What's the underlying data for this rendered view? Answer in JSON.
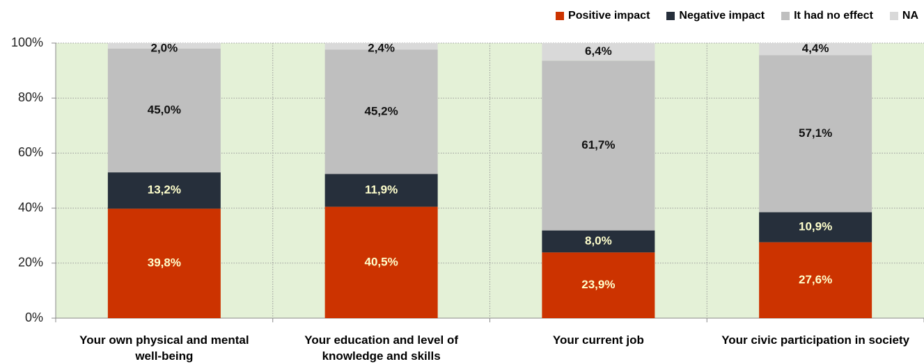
{
  "chart_data": {
    "type": "stacked_bar",
    "categories": [
      "Your own physical and mental well-being",
      "Your education and level of knowledge and skills",
      "Your current job",
      "Your civic participation in society"
    ],
    "series": [
      {
        "name": "Positive impact",
        "color": "#cc3300",
        "label_color": "#ffffcc",
        "values": [
          39.8,
          40.5,
          23.9,
          27.6
        ],
        "value_labels": [
          "39,8%",
          "40,5%",
          "23,9%",
          "27,6%"
        ]
      },
      {
        "name": "Negative impact",
        "color": "#262f3b",
        "label_color": "#ffffcc",
        "values": [
          13.2,
          11.9,
          8.0,
          10.9
        ],
        "value_labels": [
          "13,2%",
          "11,9%",
          "8,0%",
          "10,9%"
        ]
      },
      {
        "name": "It had no effect",
        "color": "#bfbfbf",
        "label_color": "#111111",
        "values": [
          45.0,
          45.2,
          61.7,
          57.1
        ],
        "value_labels": [
          "45,0%",
          "45,2%",
          "61,7%",
          "57,1%"
        ]
      },
      {
        "name": "NA",
        "color": "#d9d9d9",
        "label_color": "#111111",
        "values": [
          2.0,
          2.4,
          6.4,
          4.4
        ],
        "value_labels": [
          "2,0%",
          "2,4%",
          "6,4%",
          "4,4%"
        ]
      }
    ],
    "ylim": [
      0,
      100
    ],
    "yticks": [
      {
        "value": 0,
        "label": "0%"
      },
      {
        "value": 20,
        "label": "20%"
      },
      {
        "value": 40,
        "label": "40%"
      },
      {
        "value": 60,
        "label": "60%"
      },
      {
        "value": 80,
        "label": "80%"
      },
      {
        "value": 100,
        "label": "100%"
      }
    ],
    "grid": true,
    "legend": "top-right",
    "plot_background": "#e4f1d7"
  }
}
